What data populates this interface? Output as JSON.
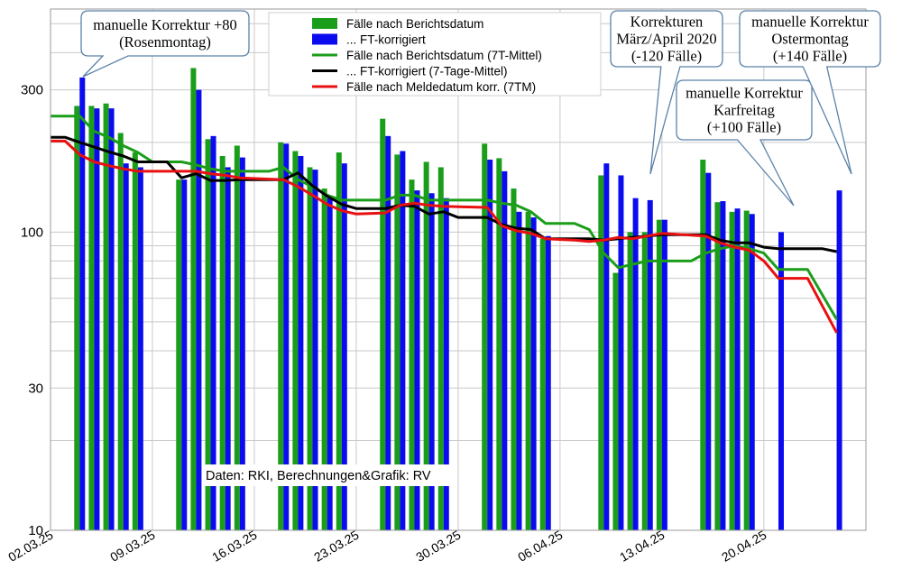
{
  "chart_data": {
    "type": "bar",
    "y_scale": "log",
    "ylim": [
      10,
      560
    ],
    "y_ticks": [
      {
        "value": 10,
        "label": "10"
      },
      {
        "value": 30,
        "label": "30"
      },
      {
        "value": 100,
        "label": "100"
      },
      {
        "value": 300,
        "label": "300"
      }
    ],
    "y_gridlines": [
      10,
      20,
      30,
      40,
      50,
      60,
      70,
      80,
      90,
      100,
      200,
      300,
      400,
      500
    ],
    "x_range": [
      "2025-03-02",
      "2025-04-27"
    ],
    "x_ticks": [
      {
        "date": "2025-03-02",
        "label": "02.03.25"
      },
      {
        "date": "2025-03-09",
        "label": "09.03.25"
      },
      {
        "date": "2025-03-16",
        "label": "16.03.25"
      },
      {
        "date": "2025-03-23",
        "label": "23.03.25"
      },
      {
        "date": "2025-03-30",
        "label": "30.03.25"
      },
      {
        "date": "2025-04-06",
        "label": "06.04.25"
      },
      {
        "date": "2025-04-13",
        "label": "13.04.25"
      },
      {
        "date": "2025-04-20",
        "label": "20.04.25"
      }
    ],
    "grid": true,
    "legend_position": "top-center",
    "bar_series": [
      {
        "name": "Fälle nach Berichtsdatum",
        "color": "#1a9e1a"
      },
      {
        "name": "... FT-korrigiert",
        "color": "#0b0bf0"
      }
    ],
    "bars": [
      {
        "date": "2025-03-04",
        "green": 265,
        "blue": 330
      },
      {
        "date": "2025-03-05",
        "green": 265,
        "blue": 260
      },
      {
        "date": "2025-03-06",
        "green": 270,
        "blue": 260
      },
      {
        "date": "2025-03-07",
        "green": 215,
        "blue": 170
      },
      {
        "date": "2025-03-08",
        "green": 185,
        "blue": 165
      },
      {
        "date": "2025-03-11",
        "green": 150,
        "blue": 150
      },
      {
        "date": "2025-03-12",
        "green": 355,
        "blue": 300
      },
      {
        "date": "2025-03-13",
        "green": 205,
        "blue": 210
      },
      {
        "date": "2025-03-14",
        "green": 180,
        "blue": 165
      },
      {
        "date": "2025-03-15",
        "green": 195,
        "blue": 178
      },
      {
        "date": "2025-03-18",
        "green": 200,
        "blue": 198
      },
      {
        "date": "2025-03-19",
        "green": 187,
        "blue": 180
      },
      {
        "date": "2025-03-20",
        "green": 165,
        "blue": 162
      },
      {
        "date": "2025-03-21",
        "green": 140,
        "blue": 130
      },
      {
        "date": "2025-03-22",
        "green": 185,
        "blue": 170
      },
      {
        "date": "2025-03-25",
        "green": 240,
        "blue": 210
      },
      {
        "date": "2025-03-26",
        "green": 182,
        "blue": 187
      },
      {
        "date": "2025-03-27",
        "green": 150,
        "blue": 138
      },
      {
        "date": "2025-03-28",
        "green": 172,
        "blue": 135
      },
      {
        "date": "2025-03-29",
        "green": 165,
        "blue": 130
      },
      {
        "date": "2025-04-01",
        "green": 198,
        "blue": 175
      },
      {
        "date": "2025-04-02",
        "green": 177,
        "blue": 160
      },
      {
        "date": "2025-04-03",
        "green": 140,
        "blue": 117
      },
      {
        "date": "2025-04-04",
        "green": 117,
        "blue": 112
      },
      {
        "date": "2025-04-05",
        "green": 95,
        "blue": 97
      },
      {
        "date": "2025-04-09",
        "green": 155,
        "blue": 170
      },
      {
        "date": "2025-04-10",
        "green": 73,
        "blue": 155
      },
      {
        "date": "2025-04-11",
        "green": 100,
        "blue": 130
      },
      {
        "date": "2025-04-12",
        "green": 100,
        "blue": 128
      },
      {
        "date": "2025-04-13",
        "green": 110,
        "blue": 110
      },
      {
        "date": "2025-04-16",
        "green": 175,
        "blue": 158
      },
      {
        "date": "2025-04-17",
        "green": 126,
        "blue": 127
      },
      {
        "date": "2025-04-18",
        "green": 117,
        "blue": 120
      },
      {
        "date": "2025-04-19",
        "green": 118,
        "blue": 115
      },
      {
        "date": "2025-04-21",
        "green": null,
        "blue": 100
      },
      {
        "date": "2025-04-25",
        "green": null,
        "blue": 138
      }
    ],
    "line_series": [
      {
        "name": "Fälle nach Berichtsdatum (7T-Mittel)",
        "color": "#1a9e1a",
        "points": [
          {
            "date": "2025-03-02",
            "value": 245
          },
          {
            "date": "2025-03-04",
            "value": 245
          },
          {
            "date": "2025-03-05",
            "value": 218
          },
          {
            "date": "2025-03-06",
            "value": 208
          },
          {
            "date": "2025-03-07",
            "value": 195
          },
          {
            "date": "2025-03-08",
            "value": 185
          },
          {
            "date": "2025-03-09",
            "value": 172
          },
          {
            "date": "2025-03-11",
            "value": 172
          },
          {
            "date": "2025-03-12",
            "value": 168
          },
          {
            "date": "2025-03-13",
            "value": 163
          },
          {
            "date": "2025-03-14",
            "value": 160
          },
          {
            "date": "2025-03-17",
            "value": 160
          },
          {
            "date": "2025-03-18",
            "value": 165
          },
          {
            "date": "2025-03-19",
            "value": 150
          },
          {
            "date": "2025-03-20",
            "value": 142
          },
          {
            "date": "2025-03-21",
            "value": 133
          },
          {
            "date": "2025-03-22",
            "value": 128
          },
          {
            "date": "2025-03-25",
            "value": 128
          },
          {
            "date": "2025-03-26",
            "value": 133
          },
          {
            "date": "2025-03-27",
            "value": 133
          },
          {
            "date": "2025-03-28",
            "value": 128
          },
          {
            "date": "2025-03-29",
            "value": 128
          },
          {
            "date": "2025-04-01",
            "value": 128
          },
          {
            "date": "2025-04-02",
            "value": 125
          },
          {
            "date": "2025-04-03",
            "value": 123
          },
          {
            "date": "2025-04-04",
            "value": 117
          },
          {
            "date": "2025-04-05",
            "value": 107
          },
          {
            "date": "2025-04-07",
            "value": 107
          },
          {
            "date": "2025-04-08",
            "value": 102
          },
          {
            "date": "2025-04-09",
            "value": 85
          },
          {
            "date": "2025-04-10",
            "value": 76
          },
          {
            "date": "2025-04-11",
            "value": 78
          },
          {
            "date": "2025-04-12",
            "value": 80
          },
          {
            "date": "2025-04-15",
            "value": 80
          },
          {
            "date": "2025-04-16",
            "value": 85
          },
          {
            "date": "2025-04-17",
            "value": 88
          },
          {
            "date": "2025-04-18",
            "value": 90
          },
          {
            "date": "2025-04-19",
            "value": 88
          },
          {
            "date": "2025-04-20",
            "value": 85
          },
          {
            "date": "2025-04-21",
            "value": 75
          },
          {
            "date": "2025-04-23",
            "value": 75
          },
          {
            "date": "2025-04-25",
            "value": 51
          }
        ]
      },
      {
        "name": "... FT-korrigiert (7-Tage-Mittel)",
        "color": "#000000",
        "points": [
          {
            "date": "2025-03-02",
            "value": 208
          },
          {
            "date": "2025-03-03",
            "value": 208
          },
          {
            "date": "2025-03-04",
            "value": 200
          },
          {
            "date": "2025-03-05",
            "value": 193
          },
          {
            "date": "2025-03-06",
            "value": 186
          },
          {
            "date": "2025-03-07",
            "value": 180
          },
          {
            "date": "2025-03-08",
            "value": 172
          },
          {
            "date": "2025-03-09",
            "value": 172
          },
          {
            "date": "2025-03-10",
            "value": 172
          },
          {
            "date": "2025-03-11",
            "value": 152
          },
          {
            "date": "2025-03-12",
            "value": 157
          },
          {
            "date": "2025-03-13",
            "value": 149
          },
          {
            "date": "2025-03-14",
            "value": 149
          },
          {
            "date": "2025-03-15",
            "value": 150
          },
          {
            "date": "2025-03-18",
            "value": 150
          },
          {
            "date": "2025-03-19",
            "value": 158
          },
          {
            "date": "2025-03-20",
            "value": 143
          },
          {
            "date": "2025-03-21",
            "value": 132
          },
          {
            "date": "2025-03-22",
            "value": 124
          },
          {
            "date": "2025-03-23",
            "value": 120
          },
          {
            "date": "2025-03-25",
            "value": 120
          },
          {
            "date": "2025-03-26",
            "value": 123
          },
          {
            "date": "2025-03-27",
            "value": 122
          },
          {
            "date": "2025-03-28",
            "value": 115
          },
          {
            "date": "2025-03-29",
            "value": 117
          },
          {
            "date": "2025-03-30",
            "value": 112
          },
          {
            "date": "2025-04-01",
            "value": 112
          },
          {
            "date": "2025-04-02",
            "value": 106
          },
          {
            "date": "2025-04-03",
            "value": 103
          },
          {
            "date": "2025-04-04",
            "value": 102
          },
          {
            "date": "2025-04-05",
            "value": 95
          },
          {
            "date": "2025-04-08",
            "value": 95
          },
          {
            "date": "2025-04-09",
            "value": 94
          },
          {
            "date": "2025-04-10",
            "value": 95
          },
          {
            "date": "2025-04-11",
            "value": 96
          },
          {
            "date": "2025-04-12",
            "value": 97
          },
          {
            "date": "2025-04-13",
            "value": 98
          },
          {
            "date": "2025-04-16",
            "value": 98
          },
          {
            "date": "2025-04-17",
            "value": 94
          },
          {
            "date": "2025-04-18",
            "value": 92
          },
          {
            "date": "2025-04-19",
            "value": 92
          },
          {
            "date": "2025-04-20",
            "value": 89
          },
          {
            "date": "2025-04-21",
            "value": 88
          },
          {
            "date": "2025-04-24",
            "value": 88
          },
          {
            "date": "2025-04-25",
            "value": 86
          }
        ]
      },
      {
        "name": "Fälle nach Meldedatum korr. (7TM)",
        "color": "#e81010",
        "points": [
          {
            "date": "2025-03-02",
            "value": 202
          },
          {
            "date": "2025-03-03",
            "value": 202
          },
          {
            "date": "2025-03-04",
            "value": 182
          },
          {
            "date": "2025-03-05",
            "value": 172
          },
          {
            "date": "2025-03-06",
            "value": 167
          },
          {
            "date": "2025-03-07",
            "value": 163
          },
          {
            "date": "2025-03-08",
            "value": 160
          },
          {
            "date": "2025-03-09",
            "value": 160
          },
          {
            "date": "2025-03-11",
            "value": 160
          },
          {
            "date": "2025-03-12",
            "value": 160
          },
          {
            "date": "2025-03-13",
            "value": 157
          },
          {
            "date": "2025-03-14",
            "value": 155
          },
          {
            "date": "2025-03-15",
            "value": 152
          },
          {
            "date": "2025-03-18",
            "value": 150
          },
          {
            "date": "2025-03-19",
            "value": 142
          },
          {
            "date": "2025-03-20",
            "value": 133
          },
          {
            "date": "2025-03-21",
            "value": 124
          },
          {
            "date": "2025-03-22",
            "value": 118
          },
          {
            "date": "2025-03-23",
            "value": 115
          },
          {
            "date": "2025-03-25",
            "value": 116
          },
          {
            "date": "2025-03-26",
            "value": 123
          },
          {
            "date": "2025-03-27",
            "value": 125
          },
          {
            "date": "2025-03-28",
            "value": 123
          },
          {
            "date": "2025-03-29",
            "value": 122
          },
          {
            "date": "2025-04-01",
            "value": 121
          },
          {
            "date": "2025-04-02",
            "value": 105
          },
          {
            "date": "2025-04-03",
            "value": 101
          },
          {
            "date": "2025-04-04",
            "value": 99
          },
          {
            "date": "2025-04-05",
            "value": 95
          },
          {
            "date": "2025-04-07",
            "value": 94
          },
          {
            "date": "2025-04-08",
            "value": 93
          },
          {
            "date": "2025-04-09",
            "value": 94
          },
          {
            "date": "2025-04-10",
            "value": 96
          },
          {
            "date": "2025-04-11",
            "value": 95
          },
          {
            "date": "2025-04-12",
            "value": 97
          },
          {
            "date": "2025-04-13",
            "value": 99
          },
          {
            "date": "2025-04-16",
            "value": 97
          },
          {
            "date": "2025-04-17",
            "value": 92
          },
          {
            "date": "2025-04-18",
            "value": 89
          },
          {
            "date": "2025-04-19",
            "value": 87
          },
          {
            "date": "2025-04-20",
            "value": 80
          },
          {
            "date": "2025-04-21",
            "value": 70
          },
          {
            "date": "2025-04-23",
            "value": 70
          },
          {
            "date": "2025-04-25",
            "value": 46
          }
        ]
      }
    ],
    "legend": [
      {
        "label": "Fälle nach Berichtsdatum",
        "color": "#1a9e1a",
        "kind": "bar"
      },
      {
        "label": "... FT-korrigiert",
        "color": "#0b0bf0",
        "kind": "bar"
      },
      {
        "label": "Fälle nach Berichtsdatum (7T-Mittel)",
        "color": "#1a9e1a",
        "kind": "line"
      },
      {
        "label": "... FT-korrigiert (7-Tage-Mittel)",
        "color": "#000000",
        "kind": "line"
      },
      {
        "label": "Fälle nach Meldedatum korr. (7TM)",
        "color": "#e81010",
        "kind": "line"
      }
    ],
    "annotations": [
      {
        "lines": [
          "manuelle Korrektur +80",
          "(Rosenmontag)"
        ],
        "date": "2025-03-04"
      },
      {
        "lines": [
          "Korrekturen",
          "März/April 2020",
          "(-120 Fälle)"
        ],
        "date": "2025-04-09"
      },
      {
        "lines": [
          "manuelle Korrektur",
          "Karfreitag",
          "(+100 Fälle)"
        ],
        "date": "2025-04-19"
      },
      {
        "lines": [
          "manuelle Korrektur",
          "Ostermontag",
          "(+140 Fälle)"
        ],
        "date": "2025-04-25"
      }
    ],
    "source_text": "Daten: RKI, Berechnungen&Grafik: RV"
  }
}
